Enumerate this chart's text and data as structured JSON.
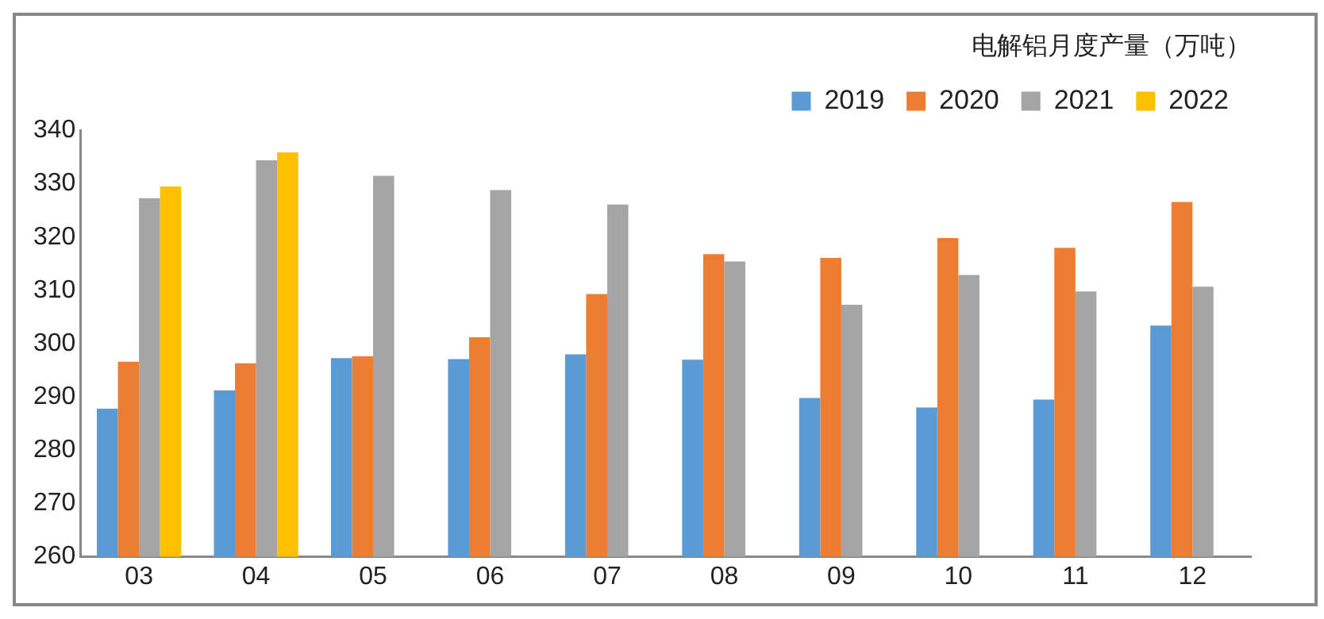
{
  "chart_data": {
    "type": "bar",
    "title": "电解铝月度产量（万吨）",
    "categories": [
      "03",
      "04",
      "05",
      "06",
      "07",
      "08",
      "09",
      "10",
      "11",
      "12"
    ],
    "series": [
      {
        "name": "2019",
        "color": "#5b9bd5",
        "values": [
          287.8,
          291.2,
          297.3,
          297.1,
          298.0,
          297.0,
          289.8,
          288.0,
          289.5,
          303.4
        ]
      },
      {
        "name": "2020",
        "color": "#ed7d31",
        "values": [
          296.6,
          296.3,
          297.6,
          301.2,
          309.3,
          316.8,
          316.1,
          319.8,
          318.0,
          326.6
        ]
      },
      {
        "name": "2021",
        "color": "#a5a5a5",
        "values": [
          327.3,
          334.4,
          331.5,
          328.8,
          326.1,
          315.4,
          307.3,
          312.9,
          309.8,
          310.7
        ]
      },
      {
        "name": "2022",
        "color": "#ffc000",
        "values": [
          329.5,
          335.9,
          null,
          null,
          null,
          null,
          null,
          null,
          null,
          null
        ]
      }
    ],
    "ylim": [
      260,
      340
    ],
    "yticks": [
      260,
      270,
      280,
      290,
      300,
      310,
      320,
      330,
      340
    ],
    "grid": false,
    "legend": "top right"
  }
}
